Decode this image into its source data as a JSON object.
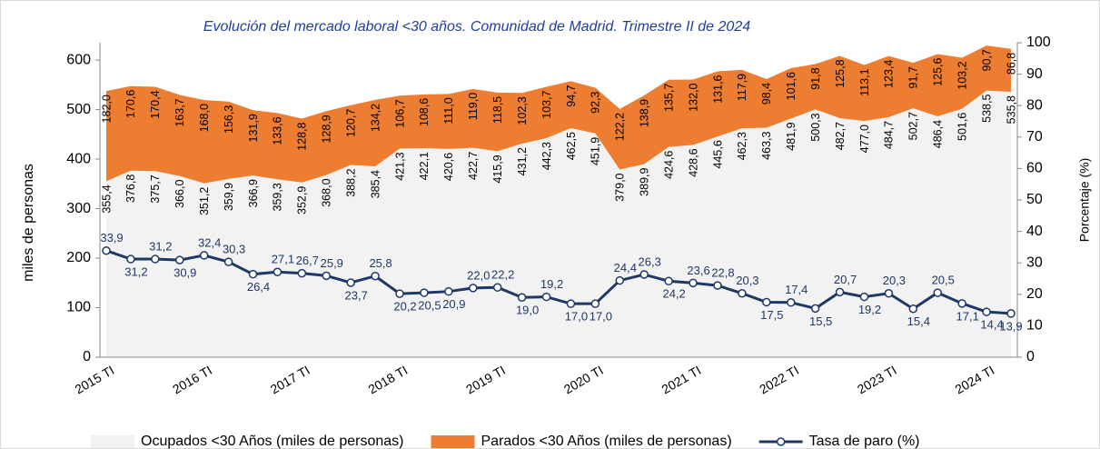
{
  "chart_data": {
    "type": "area",
    "title": "Evolución del mercado laboral <30 años. Comunidad de Madrid. Trimestre II de 2024",
    "y_label": "miles de personas",
    "y2_label": "Porcentaje (%)",
    "categories": [
      "2015 TI",
      null,
      null,
      null,
      "2016 TI",
      null,
      null,
      null,
      "2017 TI",
      null,
      null,
      null,
      "2018 TI",
      null,
      null,
      null,
      "2019 TI",
      null,
      null,
      null,
      "2020 TI",
      null,
      null,
      null,
      "2021 TI",
      null,
      null,
      null,
      "2022 TI",
      null,
      null,
      null,
      "2023 TI",
      null,
      null,
      null,
      "2024 TI",
      null
    ],
    "ylim": [
      0,
      635
    ],
    "yticks": [
      0,
      100,
      200,
      300,
      400,
      500,
      600
    ],
    "y2lim": [
      0,
      100
    ],
    "y2ticks": [
      0,
      10,
      20,
      30,
      40,
      50,
      60,
      70,
      80,
      90,
      100
    ],
    "stacked": true,
    "legend": "bottom",
    "series": [
      {
        "name": "Ocupados <30 Años (miles de personas)",
        "type": "area",
        "color": "#f2f2f2",
        "values": [
          355.4,
          376.8,
          375.7,
          366.0,
          351.2,
          359.9,
          366.9,
          359.3,
          352.9,
          368.0,
          388.2,
          385.4,
          421.3,
          422.1,
          420.6,
          422.7,
          415.9,
          431.2,
          442.3,
          462.5,
          451.9,
          379.0,
          389.9,
          424.6,
          428.6,
          445.6,
          462.3,
          463.3,
          481.9,
          500.3,
          482.7,
          477.0,
          484.7,
          502.7,
          486.4,
          501.6,
          538.5,
          535.8
        ],
        "value_labels": [
          "355,4",
          "376,8",
          "375,7",
          "366,0",
          "351,2",
          "359,9",
          "366,9",
          "359,3",
          "352,9",
          "368,0",
          "388,2",
          "385,4",
          "421,3",
          "422,1",
          "420,6",
          "422,7",
          "415,9",
          "431,2",
          "442,3",
          "462,5",
          "451,9",
          "379,0",
          "389,9",
          "424,6",
          "428,6",
          "445,6",
          "462,3",
          "463,3",
          "481,9",
          "500,3",
          "482,7",
          "477,0",
          "484,7",
          "502,7",
          "486,4",
          "501,6",
          "538,5",
          "535,8"
        ]
      },
      {
        "name": "Parados <30 Años (miles de personas)",
        "type": "area",
        "color": "#ed7d31",
        "values": [
          182.0,
          170.6,
          170.4,
          163.7,
          168.0,
          156.3,
          131.9,
          133.6,
          128.8,
          128.9,
          120.7,
          134.2,
          106.7,
          108.6,
          111.0,
          119.0,
          118.5,
          102.3,
          103.7,
          94.7,
          92.3,
          122.2,
          138.9,
          135.7,
          132.0,
          131.6,
          117.9,
          98.4,
          101.6,
          91.8,
          125.8,
          113.1,
          123.4,
          91.7,
          125.6,
          103.2,
          90.7,
          86.8
        ],
        "value_labels": [
          "182,0",
          "170,6",
          "170,4",
          "163,7",
          "168,0",
          "156,3",
          "131,9",
          "133,6",
          "128,8",
          "128,9",
          "120,7",
          "134,2",
          "106,7",
          "108,6",
          "111,0",
          "119,0",
          "118,5",
          "102,3",
          "103,7",
          "94,7",
          "92,3",
          "122,2",
          "138,9",
          "135,7",
          "132,0",
          "131,6",
          "117,9",
          "98,4",
          "101,6",
          "91,8",
          "125,8",
          "113,1",
          "123,4",
          "91,7",
          "125,6",
          "103,2",
          "90,7",
          "86,8"
        ]
      },
      {
        "name": "Tasa de paro (%)",
        "type": "line",
        "axis": "y2",
        "color": "#1f3864",
        "values": [
          33.9,
          31.2,
          31.2,
          30.9,
          32.4,
          30.3,
          26.4,
          27.1,
          26.7,
          25.9,
          23.7,
          25.8,
          20.2,
          20.5,
          20.9,
          22.0,
          22.2,
          19.0,
          19.2,
          17.0,
          17.0,
          24.4,
          26.3,
          24.2,
          23.6,
          22.8,
          20.3,
          17.5,
          17.4,
          15.5,
          20.7,
          19.2,
          20.3,
          15.4,
          20.5,
          17.1,
          14.4,
          13.9
        ],
        "value_labels": [
          "33,9",
          "31,2",
          "31,2",
          "30,9",
          "32,4",
          "30,3",
          "26,4",
          "27,1",
          "26,7",
          "25,9",
          "23,7",
          "25,8",
          "20,2",
          "20,5",
          "20,9",
          "22,0",
          "22,2",
          "19,0",
          "19,2",
          "17,0",
          "17,0",
          "24,4",
          "26,3",
          "24,2",
          "23,6",
          "22,8",
          "20,3",
          "17,5",
          "17,4",
          "15,5",
          "20,7",
          "19,2",
          "20,3",
          "15,4",
          "20,5",
          "17,1",
          "14,4",
          "13,9"
        ]
      }
    ]
  }
}
